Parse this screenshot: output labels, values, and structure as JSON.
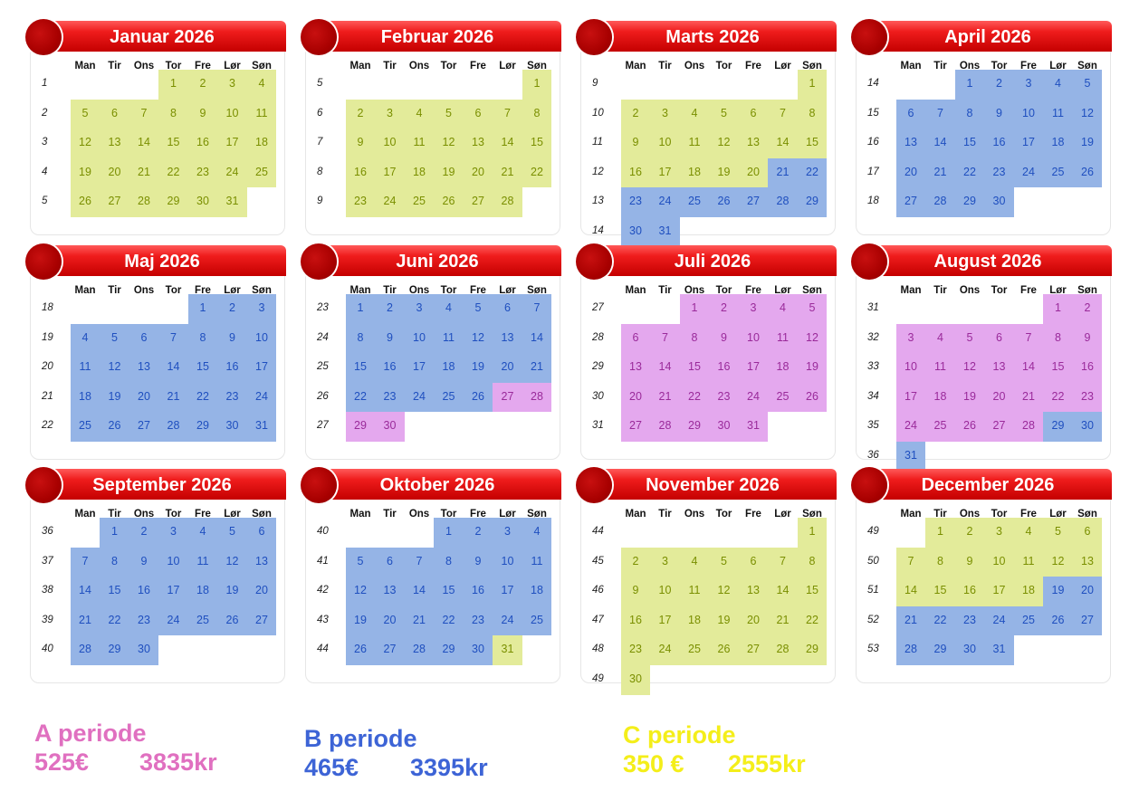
{
  "year": 2026,
  "day_headers": [
    "Man",
    "Tir",
    "Ons",
    "Tor",
    "Fre",
    "Lør",
    "Søn"
  ],
  "period_colors": {
    "A": "#e4a8ee",
    "B": "#95b4e6",
    "C": "#e3eb9a"
  },
  "months": [
    {
      "title": "Januar 2026",
      "start_dow": 3,
      "days": 31,
      "first_week": 1,
      "periods": {
        "C": [
          1,
          31
        ]
      }
    },
    {
      "title": "Februar 2026",
      "start_dow": 6,
      "days": 28,
      "first_week": 5,
      "periods": {
        "C": [
          1,
          28
        ]
      }
    },
    {
      "title": "Marts 2026",
      "start_dow": 6,
      "days": 31,
      "first_week": 9,
      "periods": {
        "C": [
          1,
          20
        ],
        "B": [
          21,
          31
        ]
      }
    },
    {
      "title": "April 2026",
      "start_dow": 2,
      "days": 30,
      "first_week": 14,
      "periods": {
        "B": [
          1,
          30
        ]
      }
    },
    {
      "title": "Maj 2026",
      "start_dow": 4,
      "days": 31,
      "first_week": 18,
      "periods": {
        "B": [
          1,
          31
        ]
      }
    },
    {
      "title": "Juni 2026",
      "start_dow": 0,
      "days": 30,
      "first_week": 23,
      "periods": {
        "B": [
          1,
          26
        ],
        "A": [
          27,
          30
        ]
      }
    },
    {
      "title": "Juli 2026",
      "start_dow": 2,
      "days": 31,
      "first_week": 27,
      "periods": {
        "A": [
          1,
          31
        ]
      }
    },
    {
      "title": "August 2026",
      "start_dow": 5,
      "days": 31,
      "first_week": 31,
      "periods": {
        "A": [
          1,
          28
        ],
        "B": [
          29,
          31
        ]
      }
    },
    {
      "title": "September 2026",
      "start_dow": 1,
      "days": 30,
      "first_week": 36,
      "periods": {
        "B": [
          1,
          30
        ]
      }
    },
    {
      "title": "Oktober 2026",
      "start_dow": 3,
      "days": 31,
      "first_week": 40,
      "periods": {
        "B": [
          1,
          30
        ],
        "C": [
          31,
          31
        ]
      }
    },
    {
      "title": "November 2026",
      "start_dow": 6,
      "days": 30,
      "first_week": 44,
      "periods": {
        "C": [
          1,
          30
        ]
      }
    },
    {
      "title": "December 2026",
      "start_dow": 1,
      "days": 31,
      "first_week": 49,
      "periods": {
        "C": [
          1,
          18
        ],
        "B": [
          19,
          31
        ]
      }
    }
  ],
  "legend": [
    {
      "label": "A periode",
      "price_eur": "525€",
      "price_dkk": "3835kr",
      "color": "#e070c0"
    },
    {
      "label": "B periode",
      "price_eur": "465€",
      "price_dkk": "3395kr",
      "color": "#3d64d6"
    },
    {
      "label": "C periode",
      "price_eur": "350 €",
      "price_dkk": "2555kr",
      "color": "#f4ee1a"
    }
  ]
}
